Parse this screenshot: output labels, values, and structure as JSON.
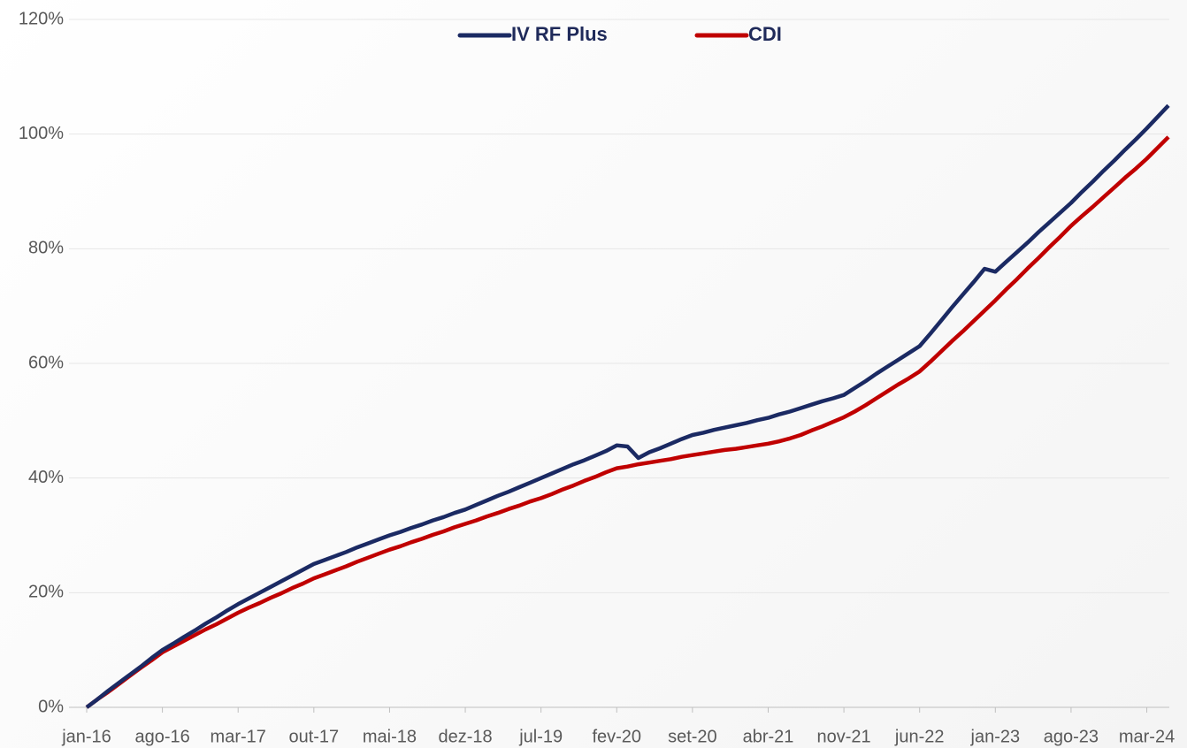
{
  "chart_data": {
    "type": "line",
    "categories": [
      "jan-16",
      null,
      null,
      null,
      null,
      null,
      null,
      "ago-16",
      null,
      null,
      null,
      null,
      null,
      null,
      "mar-17",
      null,
      null,
      null,
      null,
      null,
      null,
      "out-17",
      null,
      null,
      null,
      null,
      null,
      null,
      "mai-18",
      null,
      null,
      null,
      null,
      null,
      null,
      "dez-18",
      null,
      null,
      null,
      null,
      null,
      null,
      "jul-19",
      null,
      null,
      null,
      null,
      null,
      null,
      "fev-20",
      null,
      null,
      null,
      null,
      null,
      null,
      "set-20",
      null,
      null,
      null,
      null,
      null,
      null,
      "abr-21",
      null,
      null,
      null,
      null,
      null,
      null,
      "nov-21",
      null,
      null,
      null,
      null,
      null,
      null,
      "jun-22",
      null,
      null,
      null,
      null,
      null,
      null,
      "jan-23",
      null,
      null,
      null,
      null,
      null,
      null,
      "ago-23",
      null,
      null,
      null,
      null,
      null,
      null,
      "mar-24",
      null,
      null
    ],
    "series": [
      {
        "name": "IV RF Plus",
        "color": "#1b2a63",
        "values": [
          0,
          1.4,
          2.9,
          4.3,
          5.7,
          7.1,
          8.6,
          10,
          11.1,
          12.3,
          13.4,
          14.6,
          15.7,
          16.9,
          18,
          19,
          20,
          21,
          22,
          23,
          24,
          25,
          25.7,
          26.4,
          27.1,
          27.9,
          28.6,
          29.3,
          30,
          30.6,
          31.3,
          31.9,
          32.6,
          33.2,
          33.9,
          34.5,
          35.3,
          36.1,
          36.9,
          37.6,
          38.4,
          39.2,
          40,
          40.8,
          41.6,
          42.4,
          43.1,
          43.9,
          44.7,
          45.7,
          45.5,
          43.5,
          44.5,
          45.2,
          46,
          46.8,
          47.5,
          47.9,
          48.4,
          48.8,
          49.2,
          49.6,
          50.1,
          50.5,
          51.1,
          51.6,
          52.2,
          52.8,
          53.4,
          53.9,
          54.5,
          55.7,
          56.9,
          58.2,
          59.4,
          60.6,
          61.8,
          63,
          65.2,
          67.5,
          69.8,
          72,
          74.2,
          76.5,
          76,
          77.7,
          79.4,
          81.1,
          82.9,
          84.6,
          86.3,
          88,
          89.9,
          91.7,
          93.6,
          95.4,
          97.3,
          99.1,
          101,
          103,
          105
        ]
      },
      {
        "name": "CDI",
        "color": "#c00000",
        "values": [
          0,
          1.4,
          2.7,
          4.1,
          5.5,
          6.9,
          8.2,
          9.6,
          10.6,
          11.6,
          12.6,
          13.6,
          14.5,
          15.5,
          16.5,
          17.4,
          18.2,
          19.1,
          19.9,
          20.8,
          21.6,
          22.5,
          23.2,
          23.9,
          24.6,
          25.4,
          26.1,
          26.8,
          27.5,
          28.1,
          28.8,
          29.4,
          30.1,
          30.7,
          31.4,
          32,
          32.6,
          33.3,
          33.9,
          34.6,
          35.2,
          35.9,
          36.5,
          37.2,
          38,
          38.7,
          39.5,
          40.2,
          41,
          41.7,
          42,
          42.4,
          42.7,
          43,
          43.3,
          43.7,
          44,
          44.3,
          44.6,
          44.9,
          45.1,
          45.4,
          45.7,
          46,
          46.4,
          46.9,
          47.5,
          48.3,
          49,
          49.8,
          50.6,
          51.6,
          52.7,
          53.9,
          55.1,
          56.3,
          57.4,
          58.6,
          60.3,
          62.1,
          63.9,
          65.6,
          67.4,
          69.2,
          71,
          72.9,
          74.7,
          76.6,
          78.4,
          80.3,
          82.1,
          84,
          85.7,
          87.3,
          89,
          90.7,
          92.4,
          94,
          95.7,
          97.6,
          99.5
        ]
      }
    ],
    "ylim": [
      0,
      120
    ],
    "yticks": [
      {
        "value": 0,
        "label": "0%"
      },
      {
        "value": 20,
        "label": "20%"
      },
      {
        "value": 40,
        "label": "40%"
      },
      {
        "value": 60,
        "label": "60%"
      },
      {
        "value": 80,
        "label": "80%"
      },
      {
        "value": 100,
        "label": "100%"
      },
      {
        "value": 120,
        "label": "120%"
      }
    ],
    "grid": true,
    "legend": "top"
  }
}
